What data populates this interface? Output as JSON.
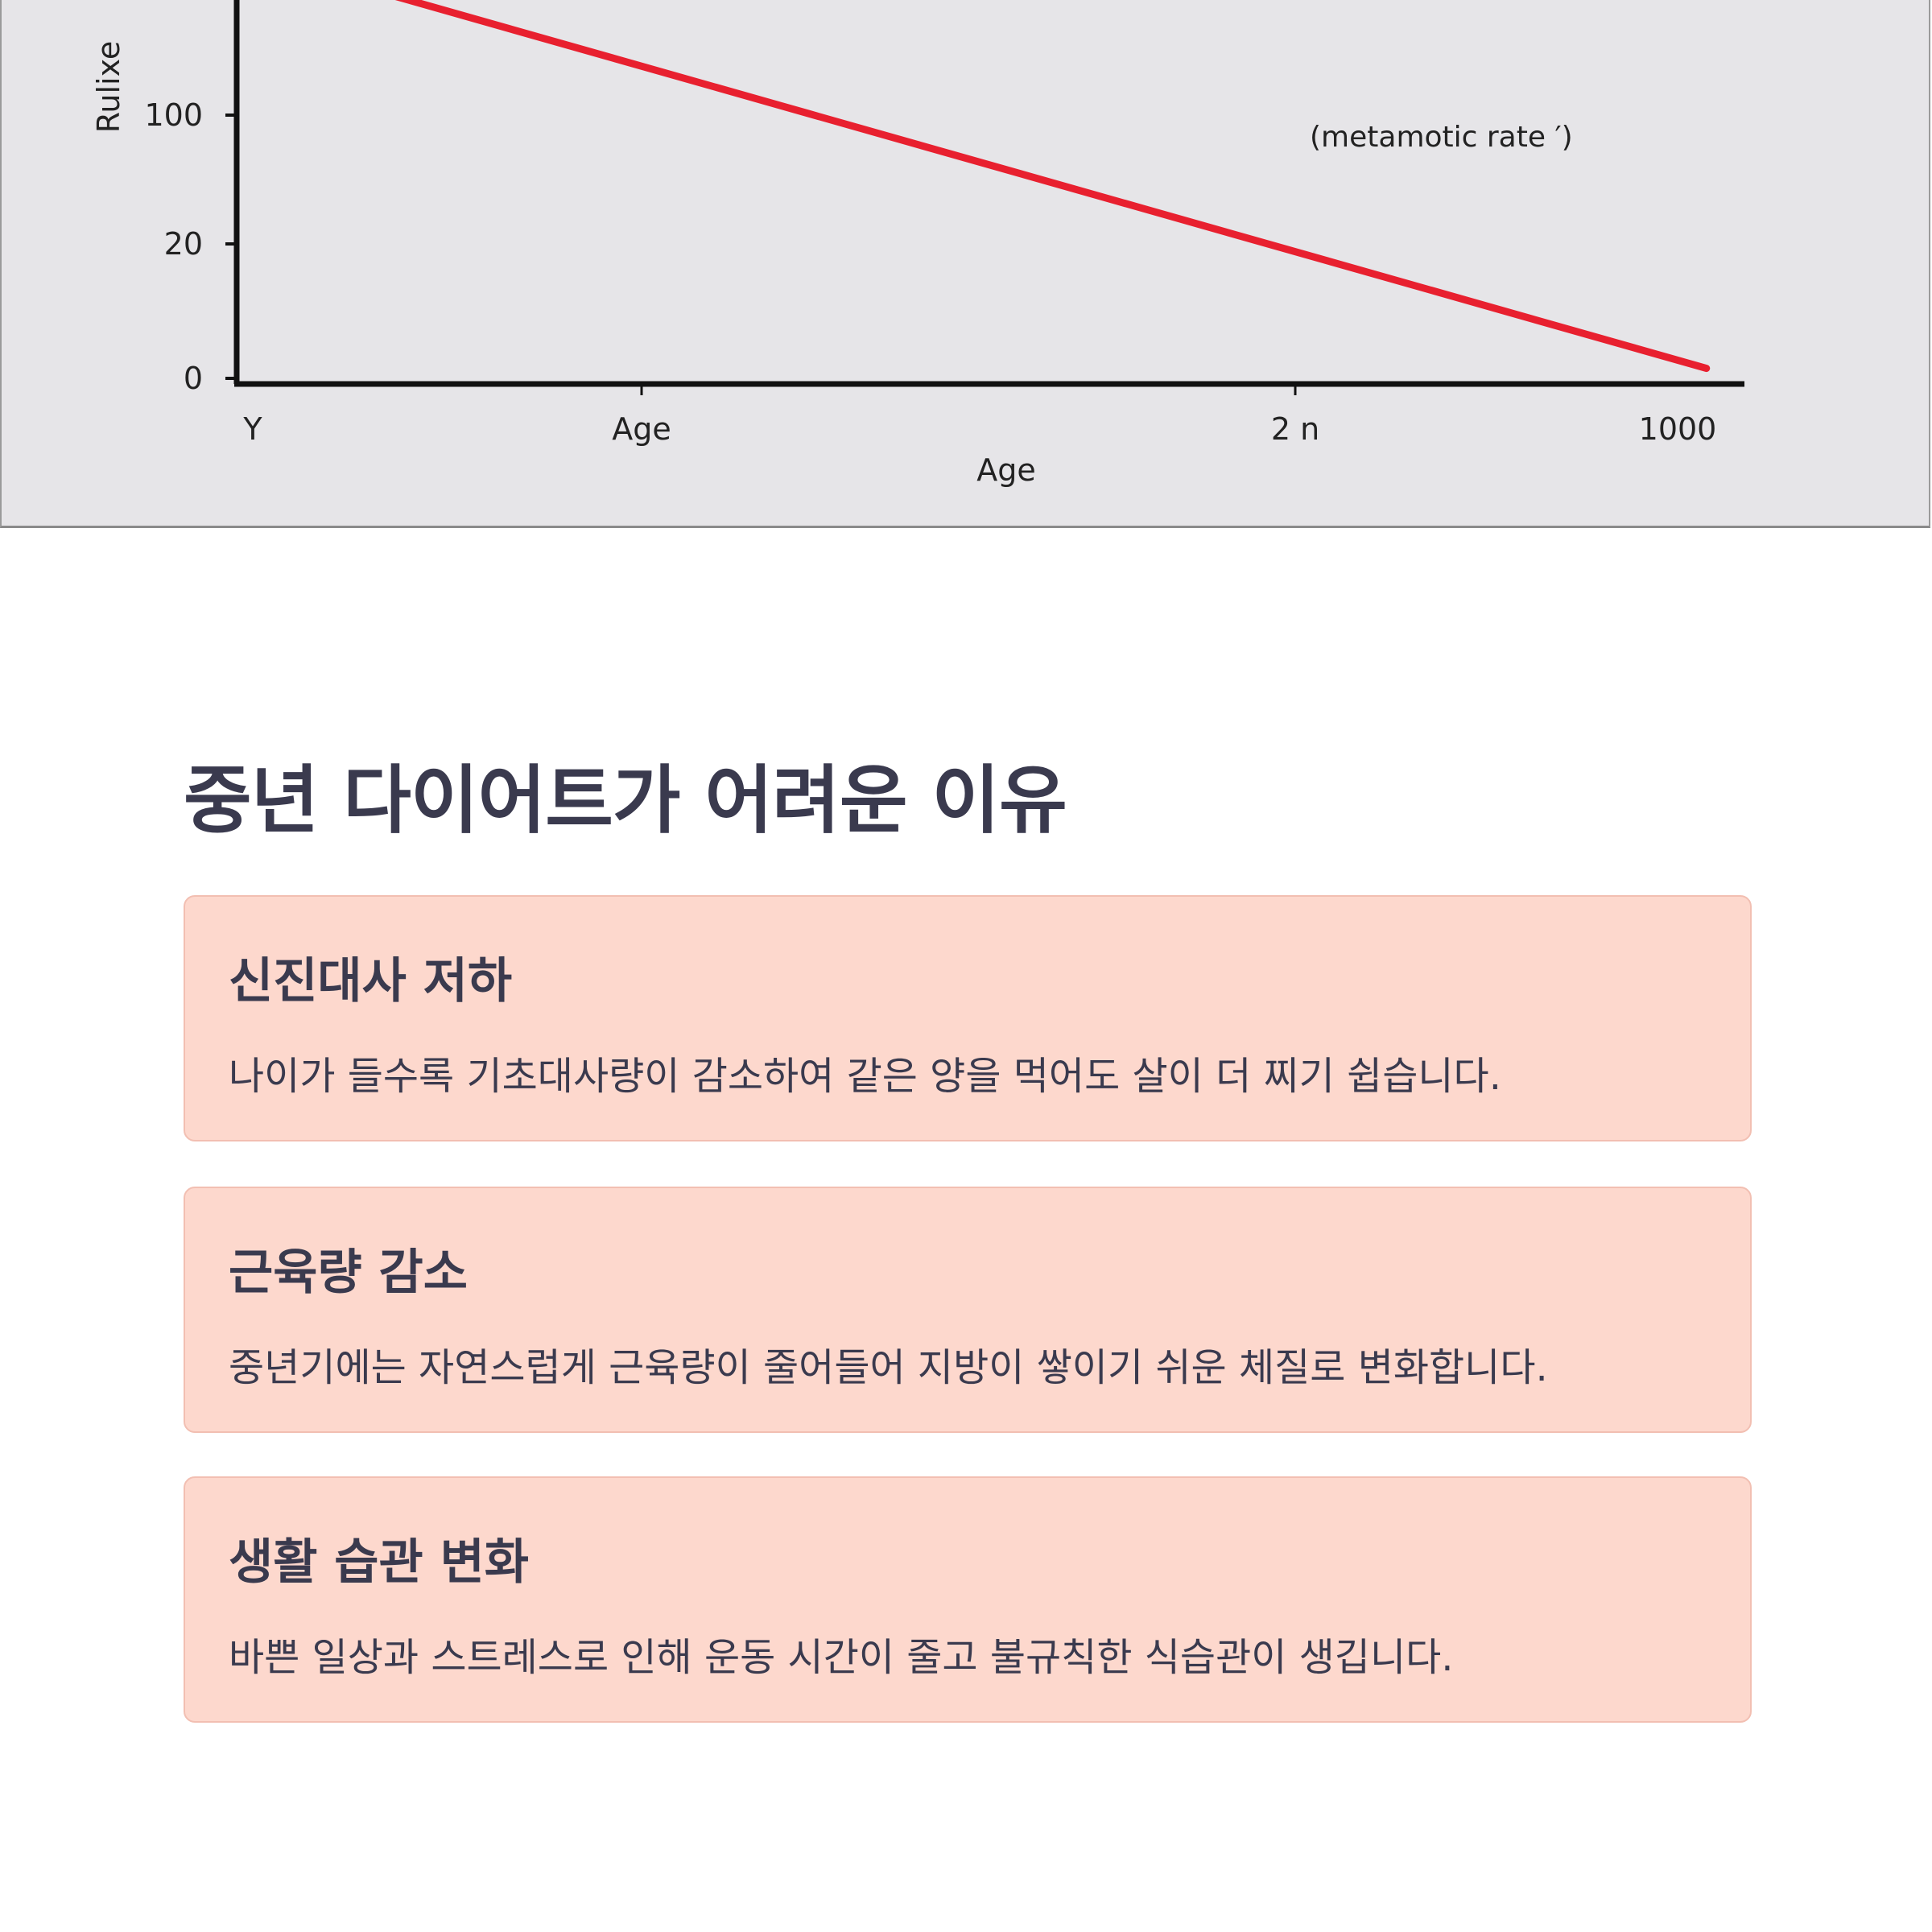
{
  "chart_data": {
    "type": "line",
    "title": "",
    "xlabel": "Age",
    "ylabel": "Rulixe",
    "x_ticks": [
      "Y",
      "Age",
      "2 n",
      "1000"
    ],
    "y_ticks": [
      "0",
      "20",
      "100"
    ],
    "series": [
      {
        "name": "(metamotic rate ′)",
        "color": "#e8202f",
        "x": [
          0.38,
          0.98
        ],
        "y": [
          100.8,
          3.8
        ]
      }
    ],
    "annotation": "(metamotic rate ′)",
    "grid": false
  },
  "section": {
    "title": "중년 다이어트가 어려운 이유"
  },
  "cards": [
    {
      "title": "신진대사 저하",
      "text": "나이가 들수록 기초대사량이 감소하여 같은 양을 먹어도 살이 더 찌기 쉽습니다."
    },
    {
      "title": "근육량 감소",
      "text": "중년기에는 자연스럽게 근육량이 줄어들어 지방이 쌓이기 쉬운 체질로 변화합니다."
    },
    {
      "title": "생활 습관 변화",
      "text": "바쁜 일상과 스트레스로 인해 운동 시간이 줄고 불규칙한 식습관이 생깁니다."
    }
  ],
  "colors": {
    "card_bg": "#fdd8cd",
    "card_border": "#f2bfb2",
    "text": "#3a3a4e",
    "line": "#e8202f"
  }
}
